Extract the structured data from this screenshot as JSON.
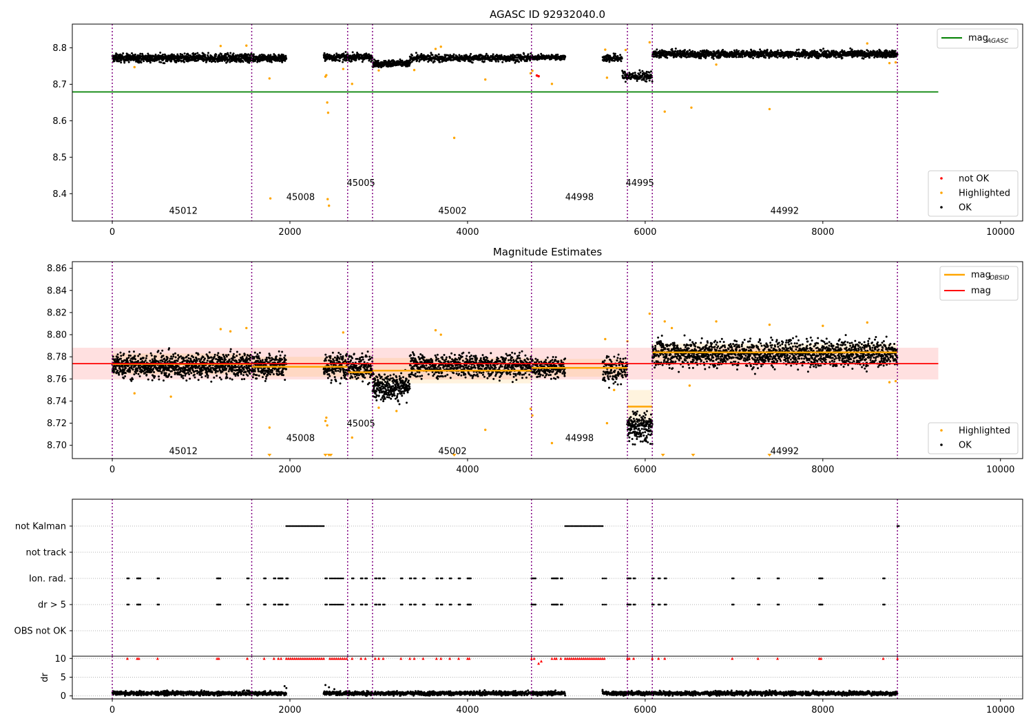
{
  "figure": {
    "title": "AGASC ID 92932040.0"
  },
  "chart_data": [
    {
      "type": "scatter",
      "title": "AGASC ID 92932040.0",
      "xlim": [
        -450,
        10250
      ],
      "ylim": [
        8.325,
        8.865
      ],
      "xticks": [
        0,
        2000,
        4000,
        6000,
        8000,
        10000
      ],
      "yticks": [
        8.4,
        8.5,
        8.6,
        8.7,
        8.8
      ],
      "ytick_decimals": 1,
      "obsid_boundaries": [
        0,
        1570,
        2650,
        2930,
        4720,
        5800,
        6080,
        8840
      ],
      "obsid_labels": [
        {
          "label": "45012",
          "x": 800,
          "y": 8.345
        },
        {
          "label": "45008",
          "x": 2120,
          "y": 8.383
        },
        {
          "label": "45005",
          "x": 2800,
          "y": 8.421
        },
        {
          "label": "45002",
          "x": 3830,
          "y": 8.345
        },
        {
          "label": "44998",
          "x": 5260,
          "y": 8.383
        },
        {
          "label": "44995",
          "x": 5940,
          "y": 8.421
        },
        {
          "label": "44992",
          "x": 7570,
          "y": 8.345
        }
      ],
      "hline": {
        "name": "mag_AGASC",
        "value": 8.679,
        "x_range": [
          -450,
          9300
        ],
        "color": "#008000"
      },
      "legend_top": {
        "position": "top-right",
        "entries": [
          {
            "label": "mag",
            "sub": "AGASC",
            "color": "#008000"
          }
        ]
      },
      "legend_bottom": {
        "position": "lower-right",
        "entries": [
          {
            "label": "not OK",
            "color": "#ff0000"
          },
          {
            "label": "Highlighted",
            "color": "#ffa500"
          },
          {
            "label": "OK",
            "color": "#000000"
          }
        ]
      },
      "ok_segments": [
        {
          "x0": 0,
          "x1": 1960,
          "base": 8.772,
          "jitter": 0.01,
          "n": 1050
        },
        {
          "x0": 2380,
          "x1": 2930,
          "base": 8.774,
          "jitter": 0.009,
          "n": 260
        },
        {
          "x0": 2930,
          "x1": 3350,
          "base": 8.757,
          "jitter": 0.008,
          "n": 240
        },
        {
          "x0": 3350,
          "x1": 4720,
          "base": 8.772,
          "jitter": 0.009,
          "n": 560
        },
        {
          "x0": 4720,
          "x1": 5100,
          "base": 8.774,
          "jitter": 0.006,
          "n": 150
        },
        {
          "x0": 5520,
          "x1": 5740,
          "base": 8.772,
          "jitter": 0.01,
          "n": 90
        },
        {
          "x0": 5740,
          "x1": 6080,
          "base": 8.722,
          "jitter": 0.012,
          "n": 140
        },
        {
          "x0": 6080,
          "x1": 8840,
          "base": 8.783,
          "jitter": 0.009,
          "n": 1350
        }
      ],
      "highlighted_points": [
        [
          250,
          8.747
        ],
        [
          1220,
          8.805
        ],
        [
          1510,
          8.806
        ],
        [
          1770,
          8.716
        ],
        [
          1780,
          8.387
        ],
        [
          2400,
          8.721
        ],
        [
          2410,
          8.725
        ],
        [
          2420,
          8.65
        ],
        [
          2430,
          8.622
        ],
        [
          2425,
          8.385
        ],
        [
          2440,
          8.367
        ],
        [
          2600,
          8.742
        ],
        [
          2700,
          8.701
        ],
        [
          3000,
          8.738
        ],
        [
          3400,
          8.739
        ],
        [
          3640,
          8.797
        ],
        [
          3700,
          8.803
        ],
        [
          3850,
          8.553
        ],
        [
          4200,
          8.713
        ],
        [
          4710,
          8.73
        ],
        [
          4730,
          8.737
        ],
        [
          4950,
          8.701
        ],
        [
          5550,
          8.795
        ],
        [
          5570,
          8.718
        ],
        [
          5780,
          8.794
        ],
        [
          6050,
          8.815
        ],
        [
          6220,
          8.625
        ],
        [
          6520,
          8.636
        ],
        [
          6800,
          8.754
        ],
        [
          7400,
          8.632
        ],
        [
          8500,
          8.812
        ],
        [
          8750,
          8.758
        ],
        [
          8820,
          8.76
        ]
      ],
      "not_ok_points": [
        [
          4780,
          8.724
        ],
        [
          4800,
          8.722
        ]
      ]
    },
    {
      "type": "scatter",
      "title": "Magnitude Estimates",
      "xlim": [
        -450,
        10250
      ],
      "ylim": [
        8.688,
        8.866
      ],
      "xticks": [
        0,
        2000,
        4000,
        6000,
        8000,
        10000
      ],
      "yticks": [
        8.7,
        8.72,
        8.74,
        8.76,
        8.78,
        8.8,
        8.82,
        8.84,
        8.86
      ],
      "ytick_decimals": 2,
      "obsid_boundaries": [
        0,
        1570,
        2650,
        2930,
        4720,
        5800,
        6080,
        8840
      ],
      "obsid_labels": [
        {
          "label": "45012",
          "x": 800,
          "y": 8.692
        },
        {
          "label": "45008",
          "x": 2120,
          "y": 8.704
        },
        {
          "label": "45005",
          "x": 2800,
          "y": 8.717
        },
        {
          "label": "45002",
          "x": 3830,
          "y": 8.692
        },
        {
          "label": "44998",
          "x": 5260,
          "y": 8.704
        },
        {
          "label": "44995",
          "x": 5940,
          "y": 8.717
        },
        {
          "label": "44992",
          "x": 7570,
          "y": 8.692
        }
      ],
      "mag_line": {
        "name": "mag",
        "value": 8.7738,
        "band": [
          8.7595,
          8.7882
        ],
        "x_range": [
          -450,
          9300
        ],
        "color": "#ff0000"
      },
      "obsid_mags": [
        {
          "x0": 0,
          "x1": 1570,
          "mag": 8.7735,
          "band": [
            8.764,
            8.783
          ]
        },
        {
          "x0": 1570,
          "x1": 2650,
          "mag": 8.771,
          "band": [
            8.762,
            8.78
          ]
        },
        {
          "x0": 2650,
          "x1": 2930,
          "mag": 8.766,
          "band": [
            8.759,
            8.773
          ]
        },
        {
          "x0": 2930,
          "x1": 4720,
          "mag": 8.7675,
          "band": [
            8.756,
            8.779
          ]
        },
        {
          "x0": 4720,
          "x1": 5800,
          "mag": 8.77,
          "band": [
            8.762,
            8.778
          ]
        },
        {
          "x0": 5800,
          "x1": 6080,
          "mag": 8.735,
          "band": [
            8.72,
            8.75
          ]
        },
        {
          "x0": 6080,
          "x1": 8840,
          "mag": 8.784,
          "band": [
            8.776,
            8.792
          ]
        }
      ],
      "legend_top": {
        "position": "top-right",
        "entries": [
          {
            "label": "mag",
            "sub": "OBSID",
            "color": "#ffa500"
          },
          {
            "label": "mag",
            "sub": "",
            "color": "#ff0000"
          }
        ]
      },
      "legend_bottom": {
        "position": "lower-right",
        "entries": [
          {
            "label": "Highlighted",
            "color": "#ffa500"
          },
          {
            "label": "OK",
            "color": "#000000"
          }
        ]
      },
      "ok_segments": [
        {
          "x0": 0,
          "x1": 1960,
          "base": 8.772,
          "jitter": 0.01,
          "n": 1250
        },
        {
          "x0": 2380,
          "x1": 2930,
          "base": 8.771,
          "jitter": 0.011,
          "n": 320
        },
        {
          "x0": 2930,
          "x1": 3350,
          "base": 8.753,
          "jitter": 0.01,
          "n": 300
        },
        {
          "x0": 3350,
          "x1": 4720,
          "base": 8.772,
          "jitter": 0.01,
          "n": 700
        },
        {
          "x0": 4720,
          "x1": 5100,
          "base": 8.77,
          "jitter": 0.008,
          "n": 200
        },
        {
          "x0": 5520,
          "x1": 5800,
          "base": 8.768,
          "jitter": 0.011,
          "n": 130
        },
        {
          "x0": 5800,
          "x1": 6080,
          "base": 8.716,
          "jitter": 0.012,
          "n": 180
        },
        {
          "x0": 6080,
          "x1": 8840,
          "base": 8.783,
          "jitter": 0.011,
          "n": 1600
        }
      ],
      "highlighted_points": [
        [
          250,
          8.747
        ],
        [
          660,
          8.744
        ],
        [
          1220,
          8.805
        ],
        [
          1330,
          8.803
        ],
        [
          1510,
          8.806
        ],
        [
          1770,
          8.716
        ],
        [
          2400,
          8.722
        ],
        [
          2410,
          8.725
        ],
        [
          2420,
          8.718
        ],
        [
          2600,
          8.802
        ],
        [
          2620,
          8.774
        ],
        [
          2700,
          8.707
        ],
        [
          3000,
          8.734
        ],
        [
          3200,
          8.731
        ],
        [
          3640,
          8.804
        ],
        [
          3700,
          8.8
        ],
        [
          4200,
          8.714
        ],
        [
          4710,
          8.733
        ],
        [
          4730,
          8.727
        ],
        [
          4950,
          8.702
        ],
        [
          5550,
          8.796
        ],
        [
          5570,
          8.72
        ],
        [
          5650,
          8.75
        ],
        [
          5800,
          8.794
        ],
        [
          6050,
          8.819
        ],
        [
          6220,
          8.812
        ],
        [
          6300,
          8.806
        ],
        [
          6500,
          8.754
        ],
        [
          6800,
          8.812
        ],
        [
          7400,
          8.809
        ],
        [
          8000,
          8.808
        ],
        [
          8500,
          8.811
        ],
        [
          8750,
          8.757
        ],
        [
          8820,
          8.758
        ]
      ],
      "below_range_markers": [
        1770,
        2400,
        2440,
        2460,
        3850,
        6200,
        6540,
        7400
      ]
    },
    {
      "type": "scatter",
      "title": "",
      "xlim": [
        -450,
        10250
      ],
      "xticks": [
        0,
        2000,
        4000,
        6000,
        8000,
        10000
      ],
      "obsid_boundaries": [
        0,
        1570,
        2650,
        2930,
        4720,
        5800,
        6080,
        8840
      ],
      "flag_rows": [
        "not Kalman",
        "not track",
        "Ion. rad.",
        "dr > 5",
        "OBS not OK"
      ],
      "flag_points": {
        "not Kalman": {
          "ranges": [
            [
              1960,
              2380
            ],
            [
              5100,
              5520
            ]
          ],
          "singles": [
            8840
          ]
        },
        "not track": {
          "ranges": [],
          "singles": []
        },
        "Ion. rad.": {
          "ranges": [
            [
              2450,
              2600
            ],
            [
              5520,
              5560
            ]
          ],
          "singles": [
            170,
            280,
            300,
            510,
            1180,
            1200,
            1520,
            1710,
            1820,
            1870,
            1900,
            1960,
            2400,
            2700,
            2800,
            2850,
            2960,
            3000,
            3050,
            3250,
            3350,
            3400,
            3500,
            3650,
            3700,
            3800,
            3900,
            4000,
            4020,
            4720,
            4750,
            4950,
            4980,
            5000,
            5050,
            5800,
            5820,
            5870,
            6080,
            6150,
            6220,
            6980,
            7270,
            7490,
            7960,
            7980,
            8680
          ]
        },
        "dr > 5": {
          "ranges": [
            [
              2450,
              2600
            ],
            [
              5520,
              5560
            ]
          ],
          "singles": [
            170,
            280,
            300,
            510,
            1180,
            1200,
            1520,
            1710,
            1820,
            1870,
            1900,
            1960,
            2400,
            2700,
            2800,
            2850,
            2960,
            3000,
            3050,
            3250,
            3350,
            3400,
            3500,
            3650,
            3700,
            3800,
            3900,
            4000,
            4020,
            4720,
            4750,
            4950,
            4980,
            5000,
            5050,
            5800,
            5820,
            5870,
            6080,
            6150,
            6220,
            6980,
            7270,
            7490,
            7960,
            7980,
            8680
          ]
        },
        "OBS not OK": {
          "ranges": [],
          "singles": []
        }
      }
    },
    {
      "type": "scatter",
      "title": "",
      "ylabel": "dr",
      "xlim": [
        -450,
        10250
      ],
      "ylim": [
        -0.8,
        10.6
      ],
      "xticks": [
        0,
        2000,
        4000,
        6000,
        8000,
        10000
      ],
      "yticks": [
        0,
        5,
        10
      ],
      "obsid_boundaries": [
        0,
        1570,
        2650,
        2930,
        4720,
        5800,
        6080,
        8840
      ],
      "dr_segments": [
        {
          "x0": 0,
          "x1": 1960,
          "base": 0.7,
          "jitter": 0.45,
          "n": 700
        },
        {
          "x0": 2380,
          "x1": 5100,
          "base": 0.7,
          "jitter": 0.45,
          "n": 1100
        },
        {
          "x0": 5520,
          "x1": 8840,
          "base": 0.7,
          "jitter": 0.45,
          "n": 1300
        }
      ],
      "dr_extra_points": [
        [
          1960,
          2.1
        ],
        [
          1940,
          2.6
        ],
        [
          2400,
          2.9
        ],
        [
          2440,
          2.3
        ],
        [
          2500,
          1.8
        ],
        [
          5520,
          1.6
        ],
        [
          7400,
          1.5
        ]
      ],
      "clipped_markers": {
        "value": 10,
        "color": "#ff0000",
        "ranges": [
          [
            1960,
            2380
          ],
          [
            2450,
            2640
          ],
          [
            5100,
            5540
          ]
        ],
        "singles": [
          170,
          280,
          300,
          510,
          1180,
          1200,
          1520,
          1710,
          1820,
          1870,
          1900,
          2700,
          2800,
          2850,
          2960,
          3000,
          3050,
          3250,
          3350,
          3400,
          3500,
          3650,
          3700,
          3800,
          3900,
          4000,
          4020,
          4720,
          4750,
          4950,
          4980,
          5000,
          5050,
          5800,
          5820,
          5870,
          6080,
          6150,
          6220,
          6980,
          7270,
          7490,
          7960,
          7980,
          8680,
          8840
        ],
        "low_points": [
          [
            4800,
            8.7
          ],
          [
            4830,
            9.3
          ]
        ]
      }
    }
  ]
}
